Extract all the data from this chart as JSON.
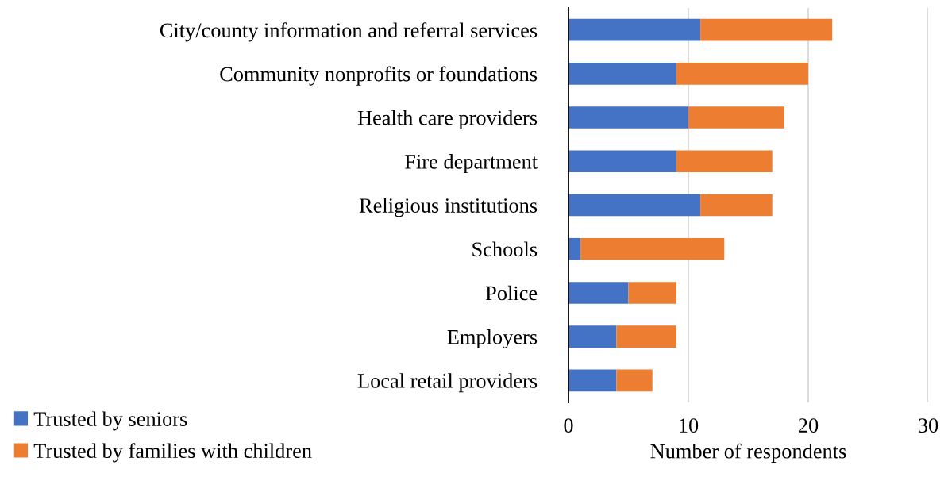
{
  "chart_data": {
    "type": "bar",
    "orientation": "horizontal",
    "stacked": true,
    "categories": [
      "City/county information and referral services",
      "Community nonprofits or foundations",
      "Health care providers",
      "Fire department",
      "Religious institutions",
      "Schools",
      "Police",
      "Employers",
      "Local retail providers"
    ],
    "series": [
      {
        "name": "Trusted by seniors",
        "color": "#4472c4",
        "values": [
          11,
          9,
          10,
          9,
          11,
          1,
          5,
          4,
          4
        ]
      },
      {
        "name": "Trusted by families with children",
        "color": "#ed7d31",
        "values": [
          11,
          11,
          8,
          8,
          6,
          12,
          4,
          5,
          3
        ]
      }
    ],
    "xlabel": "Number of respondents",
    "xlim": [
      0,
      30
    ],
    "xticks": [
      0,
      10,
      20,
      30
    ],
    "grid": "x",
    "legend": "bottom left"
  }
}
